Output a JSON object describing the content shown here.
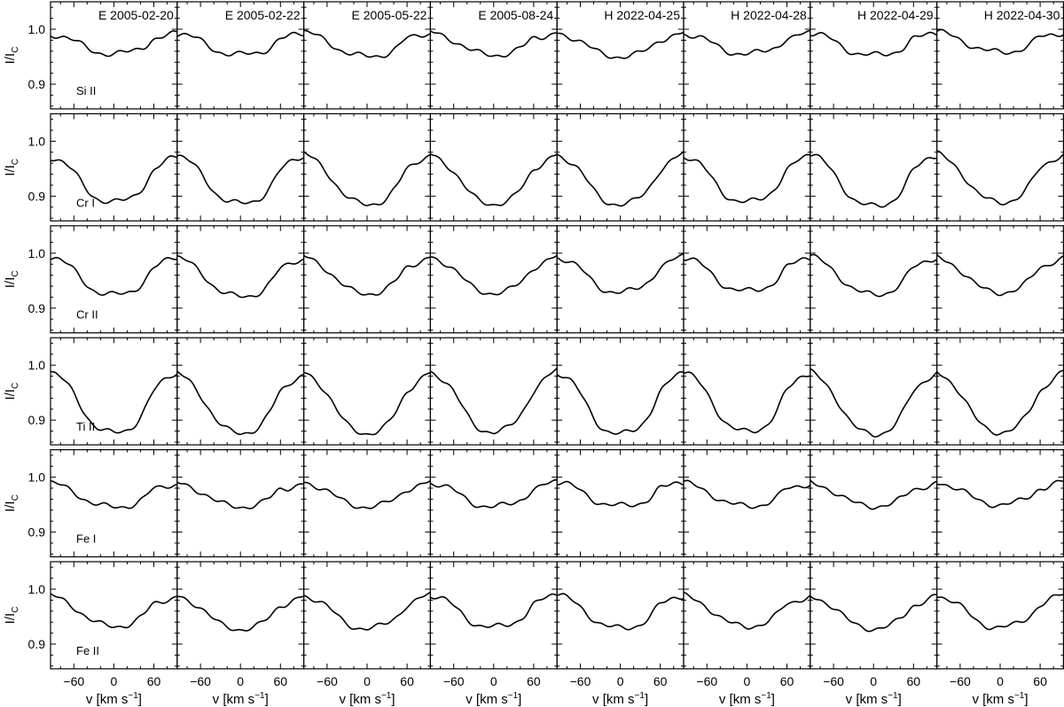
{
  "chart_data": {
    "type": "line",
    "ylabel": "I/I",
    "ylabel_sub": "C",
    "xlabel": "v [km s",
    "xlabel_sup": "−1",
    "xlabel_end": "]",
    "xlim": [
      -95,
      95
    ],
    "ylim": [
      0.855,
      1.05
    ],
    "xticks": [
      -60,
      0,
      60
    ],
    "yticks": [
      0.9,
      1.0
    ],
    "ytick_labels": [
      "0.9",
      "1.0"
    ],
    "columns": [
      "E 2005-02-20",
      "E 2005-02-22",
      "E 2005-05-22",
      "E 2005-08-24",
      "H 2022-04-25",
      "H 2022-04-28",
      "H 2022-04-29",
      "H 2022-04-30"
    ],
    "rows": [
      {
        "name": "Si II",
        "cont": [
          0.995,
          0.996,
          0.998,
          0.998,
          0.997,
          0.996,
          0.997,
          0.998
        ],
        "depth": [
          0.955,
          0.953,
          0.95,
          0.953,
          0.95,
          0.955,
          0.952,
          0.958
        ]
      },
      {
        "name": "Cr I",
        "cont": [
          0.98,
          0.982,
          0.985,
          0.985,
          0.985,
          0.982,
          0.985,
          0.985
        ],
        "depth": [
          0.888,
          0.885,
          0.884,
          0.885,
          0.884,
          0.888,
          0.88,
          0.888
        ]
      },
      {
        "name": "Cr II",
        "cont": [
          1.0,
          0.998,
          1.0,
          1.0,
          1.0,
          0.998,
          1.0,
          0.998
        ],
        "depth": [
          0.923,
          0.92,
          0.926,
          0.927,
          0.928,
          0.93,
          0.924,
          0.928
        ]
      },
      {
        "name": "Ti II",
        "cont": [
          0.998,
          0.995,
          0.998,
          1.0,
          0.998,
          0.998,
          0.998,
          0.998
        ],
        "depth": [
          0.875,
          0.875,
          0.875,
          0.877,
          0.873,
          0.877,
          0.873,
          0.877
        ]
      },
      {
        "name": "Fe I",
        "cont": [
          0.993,
          0.993,
          0.995,
          0.995,
          0.995,
          0.993,
          0.993,
          0.995
        ],
        "depth": [
          0.945,
          0.946,
          0.946,
          0.946,
          0.947,
          0.947,
          0.947,
          0.95
        ]
      },
      {
        "name": "Fe II",
        "cont": [
          0.993,
          0.993,
          0.995,
          0.995,
          0.995,
          0.993,
          0.993,
          0.995
        ],
        "depth": [
          0.932,
          0.927,
          0.928,
          0.93,
          0.928,
          0.932,
          0.928,
          0.93
        ]
      }
    ],
    "line_color": "#000000"
  }
}
